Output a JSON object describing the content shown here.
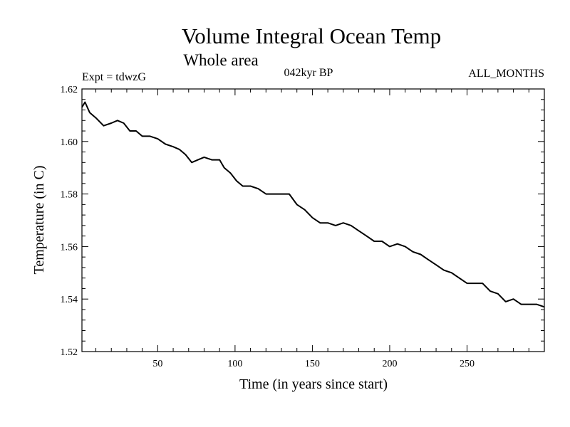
{
  "chart_data": {
    "type": "line",
    "title": "Volume Integral Ocean Temp",
    "subtitle": "Whole area",
    "annotations": {
      "experiment": "Expt = tdwzG",
      "period": "042kyr BP",
      "months": "ALL_MONTHS"
    },
    "xlabel": "Time (in years since start)",
    "ylabel": "Temperature (in C)",
    "xlim": [
      1,
      300
    ],
    "ylim": [
      1.52,
      1.62
    ],
    "x_ticks": [
      50,
      100,
      150,
      200,
      250
    ],
    "y_ticks": [
      "1.52",
      "1.54",
      "1.56",
      "1.58",
      "1.60",
      "1.62"
    ],
    "grid": false,
    "series": [
      {
        "x": [
          1,
          3,
          6,
          10,
          15,
          20,
          24,
          28,
          32,
          36,
          40,
          45,
          50,
          55,
          60,
          64,
          68,
          72,
          76,
          80,
          85,
          90,
          93,
          97,
          101,
          105,
          110,
          115,
          120,
          125,
          130,
          135,
          140,
          145,
          150,
          155,
          160,
          165,
          170,
          175,
          180,
          185,
          190,
          195,
          200,
          205,
          210,
          215,
          220,
          225,
          230,
          235,
          240,
          245,
          250,
          255,
          260,
          265,
          270,
          275,
          280,
          285,
          290,
          295,
          300
        ],
        "y": [
          1.613,
          1.615,
          1.611,
          1.609,
          1.606,
          1.607,
          1.608,
          1.607,
          1.604,
          1.604,
          1.602,
          1.602,
          1.601,
          1.599,
          1.598,
          1.597,
          1.595,
          1.592,
          1.593,
          1.594,
          1.593,
          1.593,
          1.59,
          1.588,
          1.585,
          1.583,
          1.583,
          1.582,
          1.58,
          1.58,
          1.58,
          1.58,
          1.576,
          1.574,
          1.571,
          1.569,
          1.569,
          1.568,
          1.569,
          1.568,
          1.566,
          1.564,
          1.562,
          1.562,
          1.56,
          1.561,
          1.56,
          1.558,
          1.557,
          1.555,
          1.553,
          1.551,
          1.55,
          1.548,
          1.546,
          1.546,
          1.546,
          1.543,
          1.542,
          1.539,
          1.54,
          1.538,
          1.538,
          1.538,
          1.537
        ],
        "color": "#000000"
      }
    ]
  }
}
